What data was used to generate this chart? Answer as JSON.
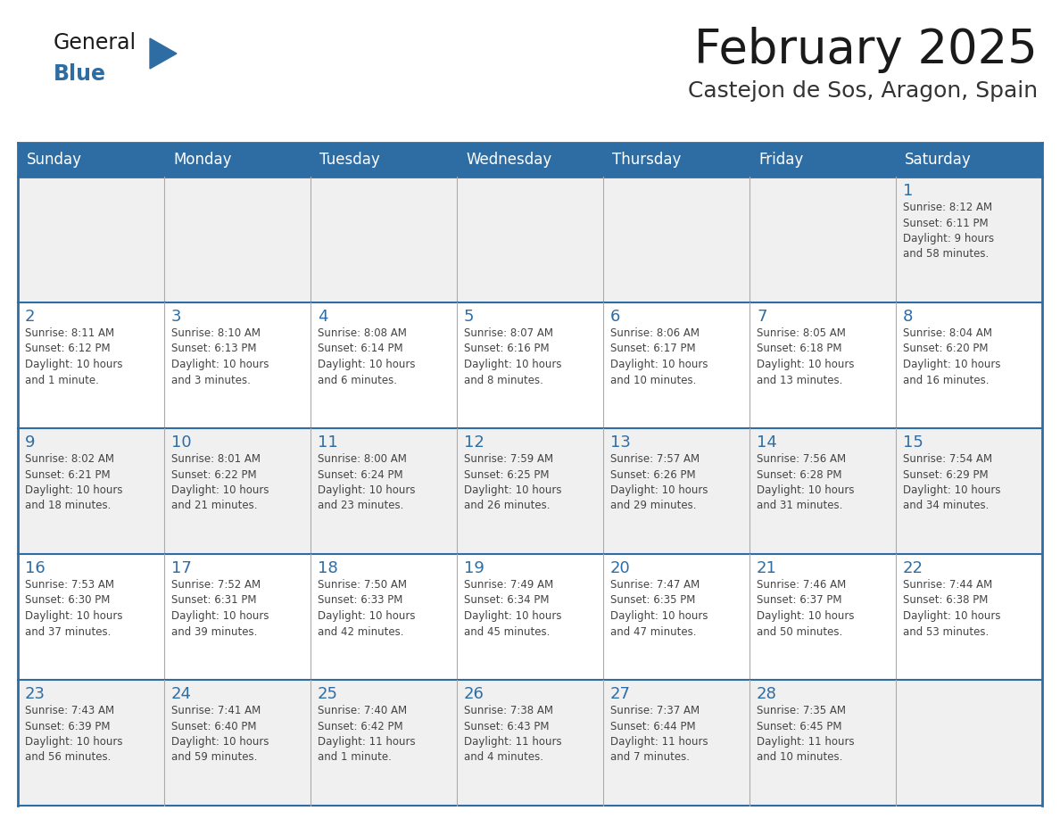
{
  "title": "February 2025",
  "subtitle": "Castejon de Sos, Aragon, Spain",
  "days_of_week": [
    "Sunday",
    "Monday",
    "Tuesday",
    "Wednesday",
    "Thursday",
    "Friday",
    "Saturday"
  ],
  "header_bg": "#2E6DA4",
  "header_text": "#FFFFFF",
  "row_bg_odd": "#F0F0F0",
  "row_bg_even": "#FFFFFF",
  "border_color": "#2E6DA4",
  "cell_divider_color": "#AAAAAA",
  "day_num_color": "#2E6DA4",
  "text_color": "#444444",
  "title_color": "#1a1a1a",
  "subtitle_color": "#333333",
  "logo_general_color": "#1a1a1a",
  "logo_blue_color": "#2E6DA4",
  "weeks": [
    [
      {
        "day": null,
        "info": null
      },
      {
        "day": null,
        "info": null
      },
      {
        "day": null,
        "info": null
      },
      {
        "day": null,
        "info": null
      },
      {
        "day": null,
        "info": null
      },
      {
        "day": null,
        "info": null
      },
      {
        "day": 1,
        "info": "Sunrise: 8:12 AM\nSunset: 6:11 PM\nDaylight: 9 hours\nand 58 minutes."
      }
    ],
    [
      {
        "day": 2,
        "info": "Sunrise: 8:11 AM\nSunset: 6:12 PM\nDaylight: 10 hours\nand 1 minute."
      },
      {
        "day": 3,
        "info": "Sunrise: 8:10 AM\nSunset: 6:13 PM\nDaylight: 10 hours\nand 3 minutes."
      },
      {
        "day": 4,
        "info": "Sunrise: 8:08 AM\nSunset: 6:14 PM\nDaylight: 10 hours\nand 6 minutes."
      },
      {
        "day": 5,
        "info": "Sunrise: 8:07 AM\nSunset: 6:16 PM\nDaylight: 10 hours\nand 8 minutes."
      },
      {
        "day": 6,
        "info": "Sunrise: 8:06 AM\nSunset: 6:17 PM\nDaylight: 10 hours\nand 10 minutes."
      },
      {
        "day": 7,
        "info": "Sunrise: 8:05 AM\nSunset: 6:18 PM\nDaylight: 10 hours\nand 13 minutes."
      },
      {
        "day": 8,
        "info": "Sunrise: 8:04 AM\nSunset: 6:20 PM\nDaylight: 10 hours\nand 16 minutes."
      }
    ],
    [
      {
        "day": 9,
        "info": "Sunrise: 8:02 AM\nSunset: 6:21 PM\nDaylight: 10 hours\nand 18 minutes."
      },
      {
        "day": 10,
        "info": "Sunrise: 8:01 AM\nSunset: 6:22 PM\nDaylight: 10 hours\nand 21 minutes."
      },
      {
        "day": 11,
        "info": "Sunrise: 8:00 AM\nSunset: 6:24 PM\nDaylight: 10 hours\nand 23 minutes."
      },
      {
        "day": 12,
        "info": "Sunrise: 7:59 AM\nSunset: 6:25 PM\nDaylight: 10 hours\nand 26 minutes."
      },
      {
        "day": 13,
        "info": "Sunrise: 7:57 AM\nSunset: 6:26 PM\nDaylight: 10 hours\nand 29 minutes."
      },
      {
        "day": 14,
        "info": "Sunrise: 7:56 AM\nSunset: 6:28 PM\nDaylight: 10 hours\nand 31 minutes."
      },
      {
        "day": 15,
        "info": "Sunrise: 7:54 AM\nSunset: 6:29 PM\nDaylight: 10 hours\nand 34 minutes."
      }
    ],
    [
      {
        "day": 16,
        "info": "Sunrise: 7:53 AM\nSunset: 6:30 PM\nDaylight: 10 hours\nand 37 minutes."
      },
      {
        "day": 17,
        "info": "Sunrise: 7:52 AM\nSunset: 6:31 PM\nDaylight: 10 hours\nand 39 minutes."
      },
      {
        "day": 18,
        "info": "Sunrise: 7:50 AM\nSunset: 6:33 PM\nDaylight: 10 hours\nand 42 minutes."
      },
      {
        "day": 19,
        "info": "Sunrise: 7:49 AM\nSunset: 6:34 PM\nDaylight: 10 hours\nand 45 minutes."
      },
      {
        "day": 20,
        "info": "Sunrise: 7:47 AM\nSunset: 6:35 PM\nDaylight: 10 hours\nand 47 minutes."
      },
      {
        "day": 21,
        "info": "Sunrise: 7:46 AM\nSunset: 6:37 PM\nDaylight: 10 hours\nand 50 minutes."
      },
      {
        "day": 22,
        "info": "Sunrise: 7:44 AM\nSunset: 6:38 PM\nDaylight: 10 hours\nand 53 minutes."
      }
    ],
    [
      {
        "day": 23,
        "info": "Sunrise: 7:43 AM\nSunset: 6:39 PM\nDaylight: 10 hours\nand 56 minutes."
      },
      {
        "day": 24,
        "info": "Sunrise: 7:41 AM\nSunset: 6:40 PM\nDaylight: 10 hours\nand 59 minutes."
      },
      {
        "day": 25,
        "info": "Sunrise: 7:40 AM\nSunset: 6:42 PM\nDaylight: 11 hours\nand 1 minute."
      },
      {
        "day": 26,
        "info": "Sunrise: 7:38 AM\nSunset: 6:43 PM\nDaylight: 11 hours\nand 4 minutes."
      },
      {
        "day": 27,
        "info": "Sunrise: 7:37 AM\nSunset: 6:44 PM\nDaylight: 11 hours\nand 7 minutes."
      },
      {
        "day": 28,
        "info": "Sunrise: 7:35 AM\nSunset: 6:45 PM\nDaylight: 11 hours\nand 10 minutes."
      },
      {
        "day": null,
        "info": null
      }
    ]
  ]
}
